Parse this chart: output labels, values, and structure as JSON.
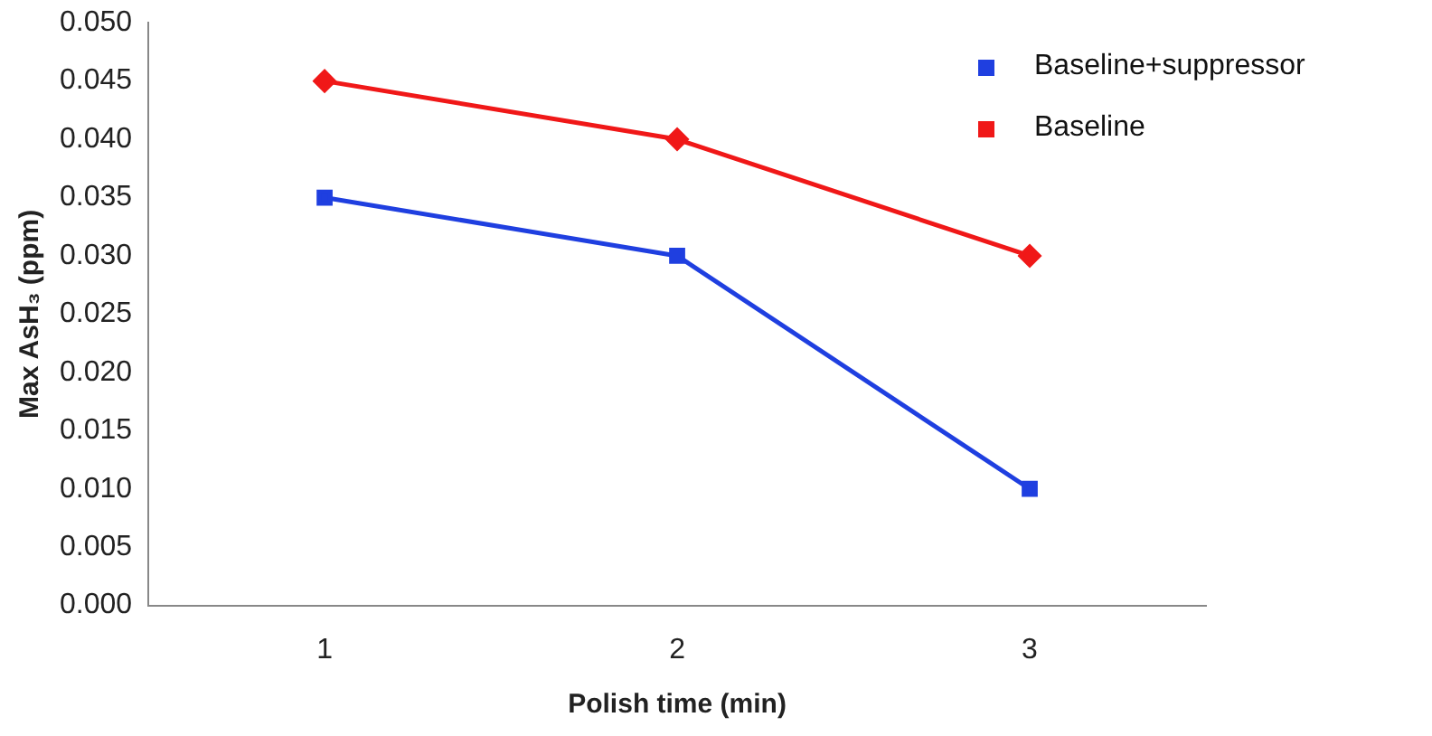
{
  "chart_data": {
    "type": "line",
    "xlabel": "Polish time (min)",
    "ylabel": "Max AsH₃ (ppm)",
    "categories": [
      "1",
      "2",
      "3"
    ],
    "series": [
      {
        "name": "Baseline+suppressor",
        "color": "#1f3fe0",
        "values": [
          0.035,
          0.03,
          0.01
        ],
        "marker": "square"
      },
      {
        "name": "Baseline",
        "color": "#f01818",
        "values": [
          0.045,
          0.04,
          0.03
        ],
        "marker": "diamond"
      }
    ],
    "ylim": [
      0,
      0.05
    ],
    "yticks": [
      {
        "value": 0,
        "label": "0.000"
      },
      {
        "value": 0.005,
        "label": "0.005"
      },
      {
        "value": 0.01,
        "label": "0.010"
      },
      {
        "value": 0.015,
        "label": "0.015"
      },
      {
        "value": 0.02,
        "label": "0.020"
      },
      {
        "value": 0.025,
        "label": "0.025"
      },
      {
        "value": 0.03,
        "label": "0.030"
      },
      {
        "value": 0.035,
        "label": "0.035"
      },
      {
        "value": 0.04,
        "label": "0.040"
      },
      {
        "value": 0.045,
        "label": "0.045"
      },
      {
        "value": 0.05,
        "label": "0.050"
      }
    ],
    "grid": false,
    "legend": "top right",
    "line_style": "solid"
  }
}
